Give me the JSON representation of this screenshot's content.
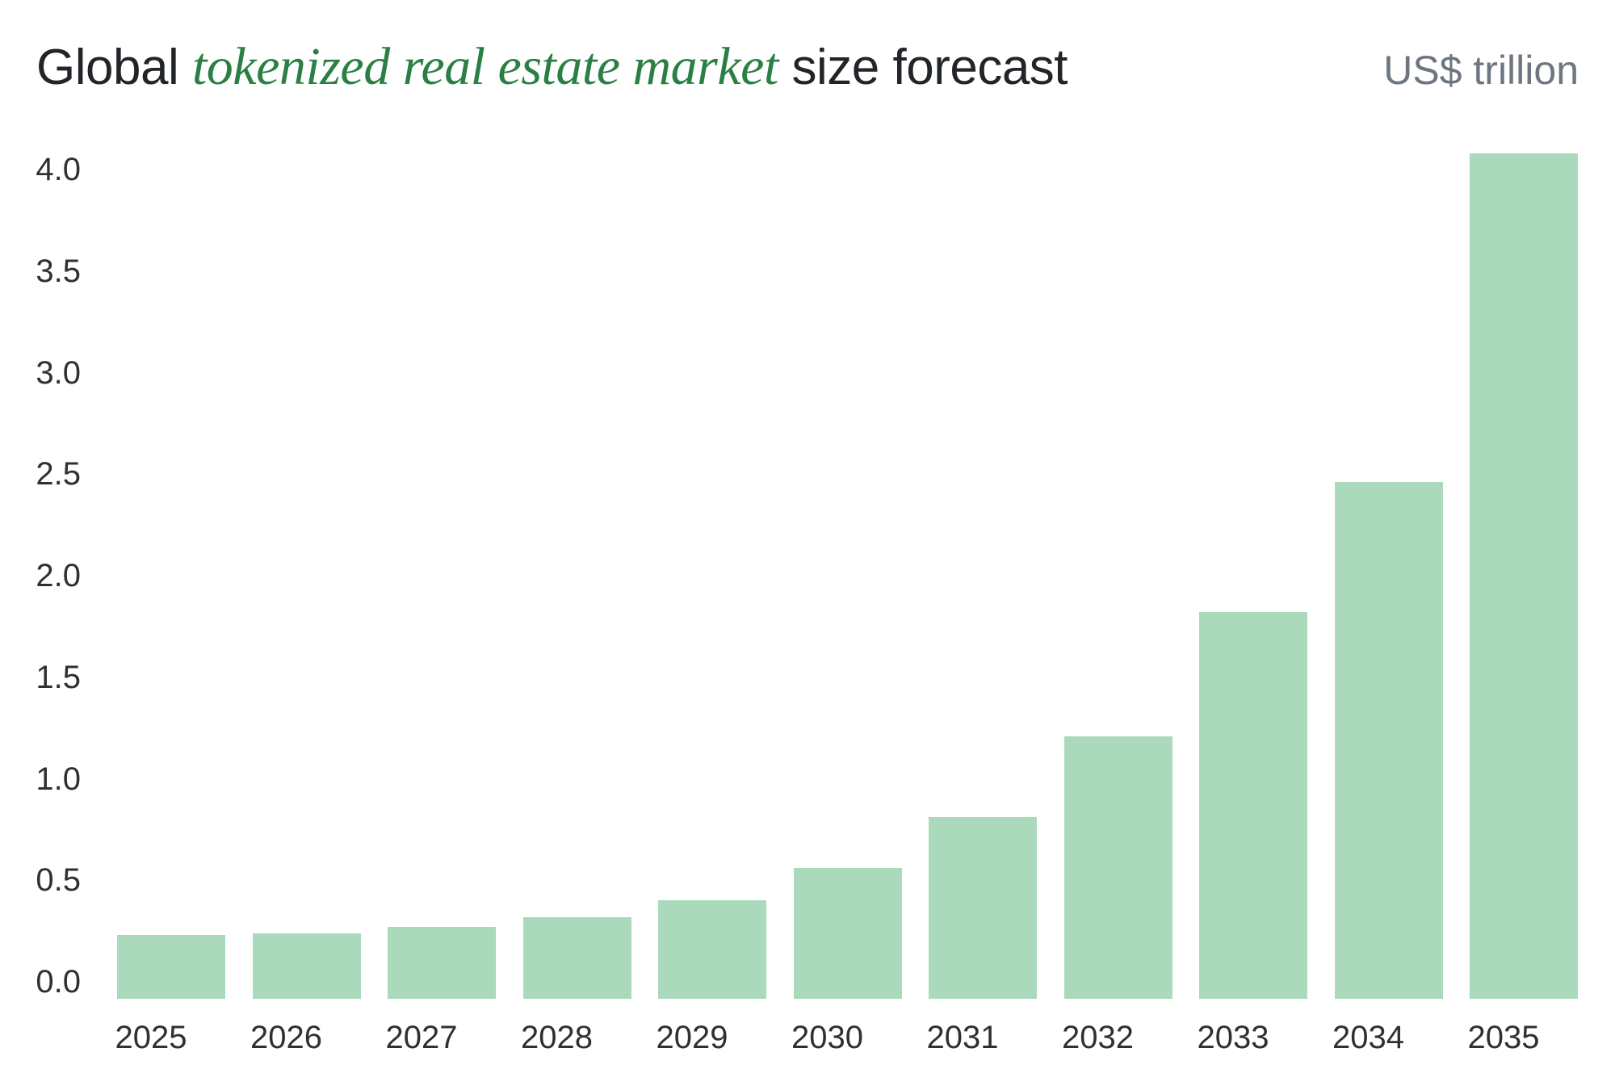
{
  "header": {
    "title_prefix": "Global ",
    "title_highlight": "tokenized real estate market",
    "title_suffix": " size forecast",
    "unit_label": "US$ trillion"
  },
  "chart_data": {
    "type": "bar",
    "title": "Global tokenized real estate market size forecast",
    "unit": "US$ trillion",
    "categories": [
      "2025",
      "2026",
      "2027",
      "2028",
      "2029",
      "2030",
      "2031",
      "2032",
      "2033",
      "2034",
      "2035"
    ],
    "values": [
      0.23,
      0.24,
      0.27,
      0.32,
      0.4,
      0.56,
      0.81,
      1.21,
      1.82,
      2.46,
      4.08
    ],
    "xlabel": "",
    "ylabel": "US$ trillion",
    "ylim": [
      0,
      4.0
    ],
    "yticks": [
      0.0,
      0.5,
      1.0,
      1.5,
      2.0,
      2.5,
      3.0,
      3.5,
      4.0
    ],
    "grid": false,
    "legend": false,
    "colors": {
      "bar": "#aad9bb",
      "title_text": "#212428",
      "title_highlight": "#2a8044",
      "axis_text": "#2e3134",
      "unit_text": "#6e7681",
      "background": "#ffffff"
    }
  }
}
